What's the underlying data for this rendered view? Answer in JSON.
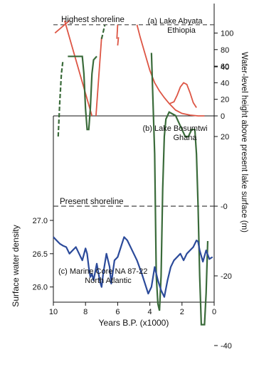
{
  "chart_data": [
    {
      "type": "line",
      "title": "(a) Lake Abyata",
      "subtitle": "Ethiopia",
      "annotation": "Highest shoreline",
      "ylabel": "Water-level height above present lake surface (m)",
      "ylim": [
        0,
        115
      ],
      "yticks": [
        0,
        20,
        40,
        60,
        80,
        100
      ],
      "reference_line": 110,
      "color": "#dd5544",
      "segments": [
        [
          [
            9.9,
            100
          ],
          [
            9.0,
            115
          ]
        ],
        [
          [
            9.3,
            115
          ],
          [
            7.6,
            0
          ]
        ],
        [
          [
            7.35,
            0
          ],
          [
            7.0,
            95
          ]
        ],
        [
          [
            6.05,
            93
          ],
          [
            6.0,
            110
          ]
        ],
        [
          [
            6.0,
            85
          ],
          [
            5.95,
            95
          ]
        ],
        [
          [
            4.8,
            110
          ],
          [
            4.6,
            95
          ],
          [
            4.3,
            75
          ],
          [
            4.0,
            55
          ],
          [
            3.7,
            40
          ],
          [
            3.4,
            30
          ],
          [
            3.1,
            22
          ],
          [
            2.8,
            15
          ],
          [
            2.4,
            7
          ],
          [
            2.0,
            3
          ],
          [
            1.5,
            1
          ],
          [
            1.0,
            0
          ],
          [
            0.6,
            0
          ]
        ],
        [
          [
            2.75,
            15
          ],
          [
            2.5,
            17
          ],
          [
            2.3,
            25
          ],
          [
            2.1,
            35
          ],
          [
            1.9,
            40
          ],
          [
            1.7,
            38
          ],
          [
            1.5,
            28
          ],
          [
            1.3,
            16
          ],
          [
            1.1,
            10
          ]
        ]
      ]
    },
    {
      "type": "line",
      "title": "(b) Lake Bosumtwi",
      "subtitle": "Ghana",
      "annotation": "Present shoreline",
      "ylabel": "Water-level height above present lake surface (m)",
      "ylim": [
        -45,
        50
      ],
      "yticks": [
        40,
        20,
        0,
        -20,
        -40
      ],
      "reference_line": 0,
      "color": "#3a6b3a",
      "segments": [
        [
          [
            9.7,
            20
          ],
          [
            9.6,
            30
          ],
          [
            9.5,
            38
          ],
          [
            9.4,
            42
          ]
        ],
        [
          [
            9.1,
            43
          ],
          [
            8.5,
            43
          ],
          [
            8.2,
            43
          ],
          [
            8.1,
            38
          ],
          [
            8.0,
            28
          ],
          [
            7.9,
            22
          ],
          [
            7.8,
            22
          ],
          [
            7.7,
            28
          ],
          [
            7.6,
            38
          ],
          [
            7.5,
            42
          ],
          [
            7.3,
            43
          ]
        ],
        [
          [
            7.0,
            48
          ],
          [
            6.8,
            52
          ]
        ],
        [
          [
            3.9,
            44
          ],
          [
            3.7,
            15
          ],
          [
            3.6,
            -20
          ],
          [
            3.5,
            -28
          ],
          [
            3.4,
            -30
          ],
          [
            3.3,
            -20
          ],
          [
            3.2,
            5
          ],
          [
            3.1,
            20
          ],
          [
            3.0,
            25
          ],
          [
            2.8,
            27
          ],
          [
            2.4,
            26
          ],
          [
            2.0,
            22
          ],
          [
            1.8,
            20
          ],
          [
            1.6,
            20
          ],
          [
            1.4,
            22
          ],
          [
            1.2,
            22
          ],
          [
            1.1,
            15
          ],
          [
            1.0,
            0
          ],
          [
            0.9,
            -20
          ],
          [
            0.8,
            -34
          ],
          [
            0.6,
            -34
          ],
          [
            0.5,
            -25
          ],
          [
            0.4,
            -10
          ]
        ]
      ]
    },
    {
      "type": "line",
      "title": "(c) Marine Core NA 87-22",
      "subtitle": "North Atlantic",
      "ylabel": "Surface water density",
      "xlabel": "Years B.P. (x1000)",
      "xlim": [
        10,
        0
      ],
      "xticks": [
        10,
        8,
        6,
        4,
        2,
        0
      ],
      "ylim": [
        25.75,
        27.1
      ],
      "yticks": [
        "27.0",
        "26.5",
        "26.0"
      ],
      "ytick_values": [
        27.0,
        26.5,
        26.0
      ],
      "color": "#2b4a9a",
      "x": [
        10,
        9.8,
        9.6,
        9.4,
        9.2,
        9.0,
        8.8,
        8.6,
        8.4,
        8.2,
        8.0,
        7.9,
        7.8,
        7.7,
        7.6,
        7.5,
        7.3,
        7.1,
        7.0,
        6.9,
        6.7,
        6.5,
        6.4,
        6.2,
        6.0,
        5.8,
        5.6,
        5.4,
        5.2,
        5.0,
        4.8,
        4.5,
        4.3,
        4.1,
        3.9,
        3.7,
        3.5,
        3.3,
        3.1,
        2.9,
        2.7,
        2.5,
        2.3,
        2.1,
        1.9,
        1.7,
        1.5,
        1.3,
        1.1,
        1.0,
        0.9,
        0.7,
        0.5,
        0.3,
        0.1
      ],
      "y": [
        26.75,
        26.7,
        26.65,
        26.62,
        26.6,
        26.5,
        26.55,
        26.6,
        26.5,
        26.4,
        26.58,
        26.5,
        26.3,
        26.15,
        26.2,
        26.1,
        26.35,
        26.08,
        26.0,
        26.2,
        26.5,
        26.3,
        26.05,
        26.4,
        26.45,
        26.6,
        26.75,
        26.7,
        26.6,
        26.5,
        26.4,
        26.2,
        26.05,
        25.9,
        26.0,
        26.3,
        26.1,
        25.95,
        25.85,
        26.1,
        26.3,
        26.4,
        26.45,
        26.5,
        26.4,
        26.5,
        26.55,
        26.6,
        26.7,
        26.68,
        26.55,
        26.38,
        26.55,
        26.42,
        26.45
      ]
    }
  ]
}
